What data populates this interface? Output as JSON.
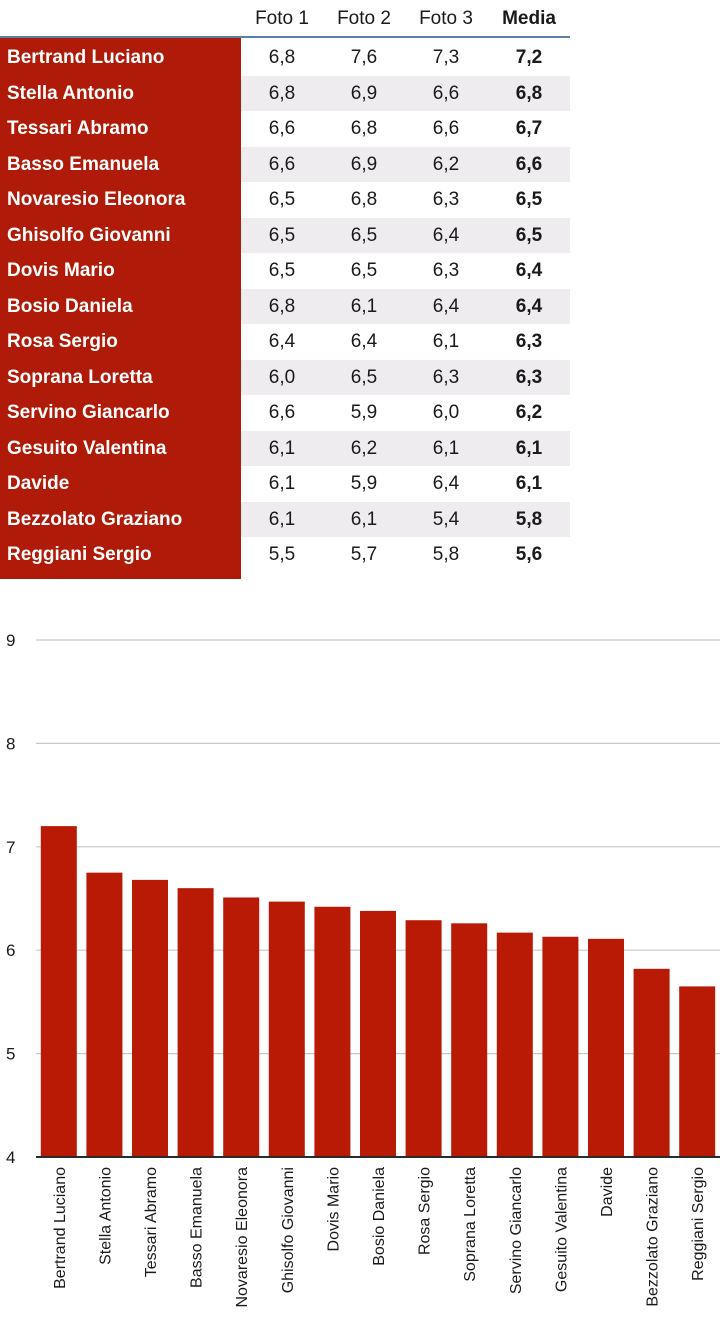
{
  "table": {
    "headers": [
      "Foto 1",
      "Foto 2",
      "Foto 3",
      "Media"
    ],
    "rows": [
      {
        "name": "Bertrand Luciano",
        "f1": "6,8",
        "f2": "7,6",
        "f3": "7,3",
        "media": "7,2"
      },
      {
        "name": "Stella Antonio",
        "f1": "6,8",
        "f2": "6,9",
        "f3": "6,6",
        "media": "6,8"
      },
      {
        "name": "Tessari Abramo",
        "f1": "6,6",
        "f2": "6,8",
        "f3": "6,6",
        "media": "6,7"
      },
      {
        "name": "Basso Emanuela",
        "f1": "6,6",
        "f2": "6,9",
        "f3": "6,2",
        "media": "6,6"
      },
      {
        "name": "Novaresio Eleonora",
        "f1": "6,5",
        "f2": "6,8",
        "f3": "6,3",
        "media": "6,5"
      },
      {
        "name": "Ghisolfo Giovanni",
        "f1": "6,5",
        "f2": "6,5",
        "f3": "6,4",
        "media": "6,5"
      },
      {
        "name": "Dovis Mario",
        "f1": "6,5",
        "f2": "6,5",
        "f3": "6,3",
        "media": "6,4"
      },
      {
        "name": "Bosio Daniela",
        "f1": "6,8",
        "f2": "6,1",
        "f3": "6,4",
        "media": "6,4"
      },
      {
        "name": "Rosa Sergio",
        "f1": "6,4",
        "f2": "6,4",
        "f3": "6,1",
        "media": "6,3"
      },
      {
        "name": "Soprana Loretta",
        "f1": "6,0",
        "f2": "6,5",
        "f3": "6,3",
        "media": "6,3"
      },
      {
        "name": "Servino Giancarlo",
        "f1": "6,6",
        "f2": "5,9",
        "f3": "6,0",
        "media": "6,2"
      },
      {
        "name": "Gesuito Valentina",
        "f1": "6,1",
        "f2": "6,2",
        "f3": "6,1",
        "media": "6,1"
      },
      {
        "name": "Davide",
        "f1": "6,1",
        "f2": "5,9",
        "f3": "6,4",
        "media": "6,1"
      },
      {
        "name": "Bezzolato Graziano",
        "f1": "6,1",
        "f2": "6,1",
        "f3": "5,4",
        "media": "5,8"
      },
      {
        "name": "Reggiani Sergio",
        "f1": "5,5",
        "f2": "5,7",
        "f3": "5,8",
        "media": "5,6"
      }
    ]
  },
  "colors": {
    "bar": "#b81a06",
    "name_bg": "#b01a08",
    "grid": "#c8c8c8",
    "axis": "#2a2a2a"
  },
  "chart_data": {
    "type": "bar",
    "title": "",
    "xlabel": "",
    "ylabel": "",
    "ylim": [
      4,
      9
    ],
    "yticks": [
      4,
      5,
      6,
      7,
      8,
      9
    ],
    "grid": true,
    "categories": [
      "Bertrand Luciano",
      "Stella Antonio",
      "Tessari Abramo",
      "Basso Emanuela",
      "Novaresio Eleonora",
      "Ghisolfo Giovanni",
      "Dovis Mario",
      "Bosio Daniela",
      "Rosa Sergio",
      "Soprana Loretta",
      "Servino Giancarlo",
      "Gesuito Valentina",
      "Davide",
      "Bezzolato Graziano",
      "Reggiani Sergio"
    ],
    "values": [
      7.2,
      6.75,
      6.68,
      6.6,
      6.51,
      6.47,
      6.42,
      6.38,
      6.29,
      6.26,
      6.17,
      6.13,
      6.11,
      5.82,
      5.65
    ]
  }
}
